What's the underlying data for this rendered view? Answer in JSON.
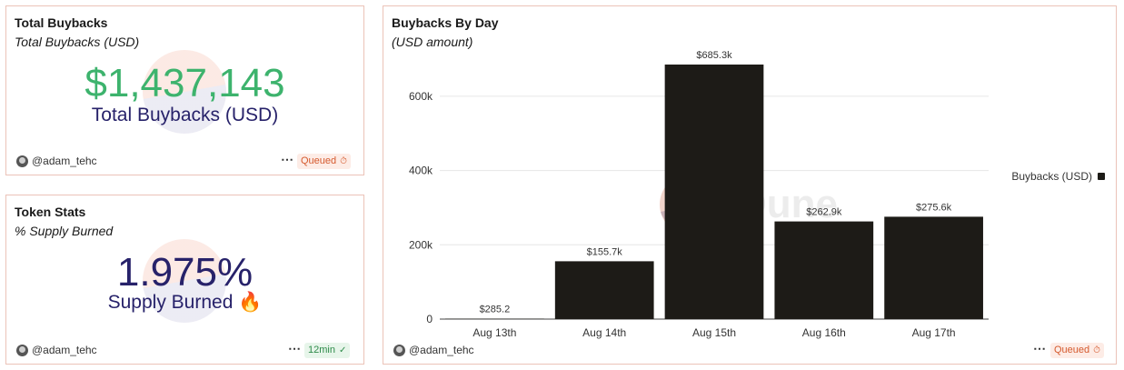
{
  "total_buybacks": {
    "title": "Total Buybacks",
    "subtitle": "Total Buybacks (USD)",
    "value": "$1,437,143",
    "label": "Total Buybacks (USD)",
    "value_color": "#3db36d",
    "author": "@adam_tehc",
    "menu": "⋯",
    "status": "Queued",
    "status_icon": "timer-icon"
  },
  "token_stats": {
    "title": "Token Stats",
    "subtitle": "% Supply Burned",
    "value": "1.975%",
    "label": "Supply Burned 🔥",
    "value_color": "#27226a",
    "author": "@adam_tehc",
    "menu": "⋯",
    "status": "12min",
    "status_icon": "check-circle-icon"
  },
  "buybacks_chart": {
    "title": "Buybacks By Day",
    "subtitle": "(USD amount)",
    "author": "@adam_tehc",
    "menu": "⋯",
    "status": "Queued",
    "status_icon": "timer-icon",
    "watermark": "Dune"
  },
  "chart_data": {
    "type": "bar",
    "categories": [
      "Aug 13th",
      "Aug 14th",
      "Aug 15th",
      "Aug 16th",
      "Aug 17th"
    ],
    "series": [
      {
        "name": "Buybacks (USD)",
        "values": [
          285.2,
          155700,
          685300,
          262900,
          275600
        ],
        "data_labels": [
          "$285.2",
          "$155.7k",
          "$685.3k",
          "$262.9k",
          "$275.6k"
        ],
        "color": "#1d1b17"
      }
    ],
    "ylim": [
      0,
      700000
    ],
    "yticks": [
      0,
      200000,
      400000,
      600000
    ],
    "ytick_labels": [
      "0",
      "200k",
      "400k",
      "600k"
    ],
    "grid": true,
    "legend": "right"
  }
}
